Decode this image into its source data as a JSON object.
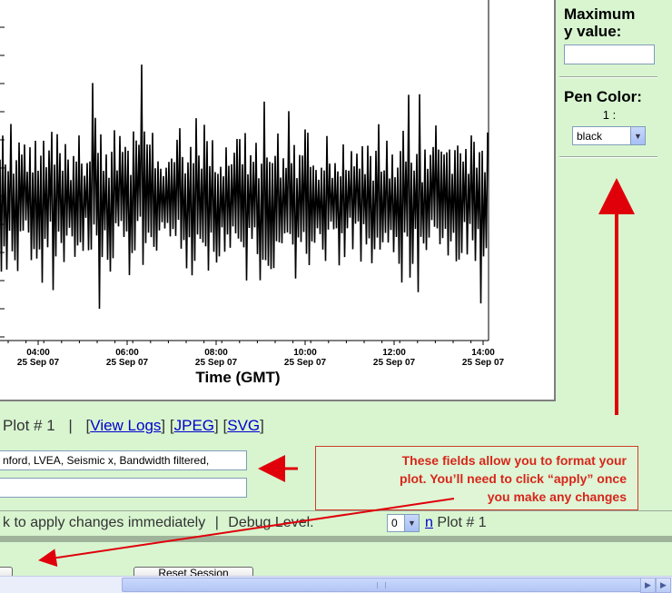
{
  "chart_data": {
    "type": "line",
    "title": "",
    "xlabel": "Time (GMT)",
    "ylabel": "",
    "x_ticks": [
      {
        "time": "04:00",
        "date": "25 Sep 07"
      },
      {
        "time": "06:00",
        "date": "25 Sep 07"
      },
      {
        "time": "08:00",
        "date": "25 Sep 07"
      },
      {
        "time": "10:00",
        "date": "25 Sep 07"
      },
      {
        "time": "12:00",
        "date": "25 Sep 07"
      },
      {
        "time": "14:00",
        "date": "25 Sep 07"
      }
    ],
    "xlim": [
      "02:10",
      "14:00"
    ],
    "series": [
      {
        "color": "#000000",
        "style": "noisy seismic trace, dense vertical excursions"
      }
    ],
    "grid": false
  },
  "side_panel": {
    "max_y_label_line1": "Maximum",
    "max_y_label_line2": "y value:",
    "max_y_value": "",
    "pen_color_label": "Pen Color:",
    "pen_index": "1 :",
    "pen_color_value": "black"
  },
  "toolbar": {
    "plot_label": "Plot # 1",
    "divider": "|",
    "view_logs": "View Logs",
    "jpeg": "JPEG",
    "svg": "SVG"
  },
  "format_fields": {
    "title_value": "nford, LVEA, Seismic x, Bandwidth filtered,",
    "second_value": ""
  },
  "callout": {
    "line1": "These fields allow you to format your",
    "line2": "plot.  You’ll need to click “apply” once",
    "line3": "you make any changes"
  },
  "status_row": {
    "apply_text": "k to apply changes immediately",
    "divider": "|",
    "debug_label": "Debug Level:",
    "debug_value": "0",
    "link_n": "n",
    "plot_label": "Plot # 1"
  },
  "bottom": {
    "reset_session": "Reset Session"
  },
  "colors": {
    "page_bg": "#d8f5d0",
    "accent_red": "#d8261b",
    "link_blue": "#0000cc"
  }
}
